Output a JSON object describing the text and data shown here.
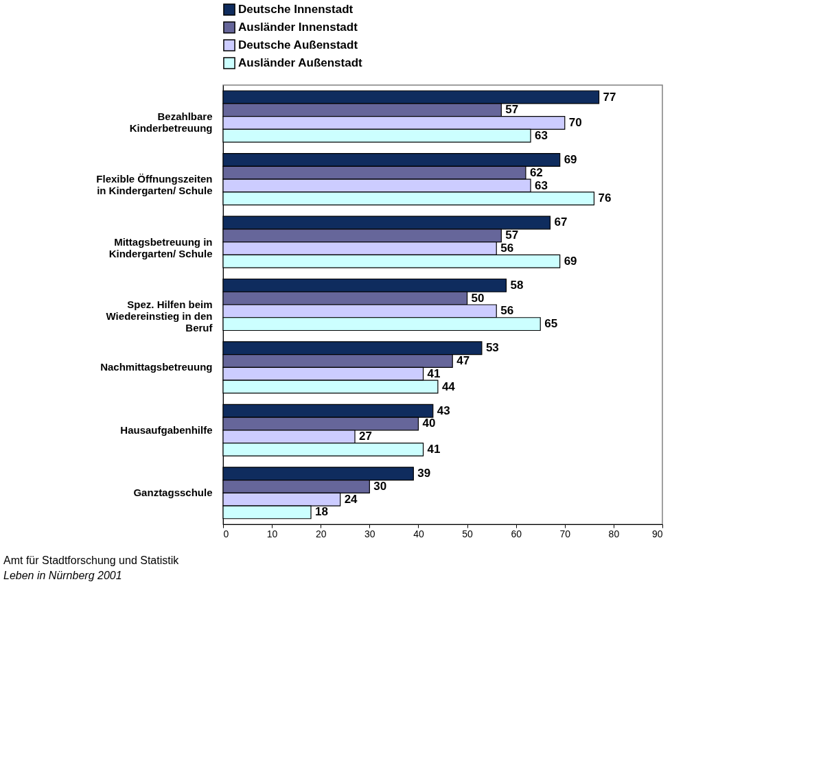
{
  "chart_data": {
    "type": "bar",
    "orientation": "horizontal",
    "categories": [
      "Bezahlbare Kinderbetreuung",
      "Flexible Öffnungszeiten in Kindergarten/ Schule",
      "Mittagsbetreuung in Kindergarten/ Schule",
      "Spez. Hilfen beim Wiedereinstieg in den Beruf",
      "Nachmittagsbetreuung",
      "Hausaufgabenhilfe",
      "Ganztagsschule"
    ],
    "series": [
      {
        "name": "Deutsche Innenstadt",
        "color": "#0f2c5e",
        "values": [
          77,
          69,
          67,
          58,
          53,
          43,
          39
        ]
      },
      {
        "name": "Ausländer Innenstadt",
        "color": "#66669a",
        "values": [
          57,
          62,
          57,
          50,
          47,
          40,
          30
        ]
      },
      {
        "name": "Deutsche Außenstadt",
        "color": "#ccccff",
        "values": [
          70,
          63,
          56,
          56,
          41,
          27,
          24
        ]
      },
      {
        "name": "Ausländer Außenstadt",
        "color": "#ccffff",
        "values": [
          63,
          76,
          69,
          65,
          44,
          41,
          18
        ]
      }
    ],
    "xlim": [
      0,
      90
    ],
    "xticks": [
      0,
      10,
      20,
      30,
      40,
      50,
      60,
      70,
      80,
      90
    ],
    "data_labels": true,
    "legend": "top",
    "grid": false,
    "annotations": [
      "Amt für Stadtforschung und Statistik",
      "Leben in Nürnberg 2001"
    ]
  }
}
